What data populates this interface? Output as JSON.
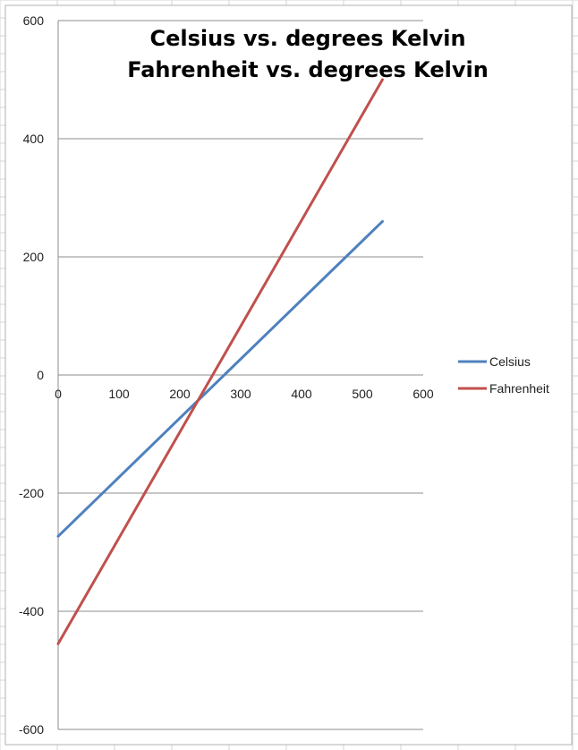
{
  "chart_data": {
    "type": "line",
    "title_lines": [
      "Celsius vs. degrees Kelvin",
      "Fahrenheit vs. degrees Kelvin"
    ],
    "xlabel": "",
    "ylabel": "",
    "xlim": [
      0,
      600
    ],
    "ylim": [
      -600,
      600
    ],
    "x_ticks": [
      0,
      100,
      200,
      300,
      400,
      500,
      600
    ],
    "y_ticks": [
      600,
      400,
      200,
      0,
      -200,
      -400,
      -600
    ],
    "grid": "horizontal",
    "legend": "right",
    "series": [
      {
        "name": "Celsius",
        "color": "#4f81bd",
        "x": [
          0,
          533
        ],
        "y": [
          -273,
          260
        ]
      },
      {
        "name": "Fahrenheit",
        "color": "#c0504d",
        "x": [
          0,
          533
        ],
        "y": [
          -455,
          500
        ]
      }
    ]
  }
}
